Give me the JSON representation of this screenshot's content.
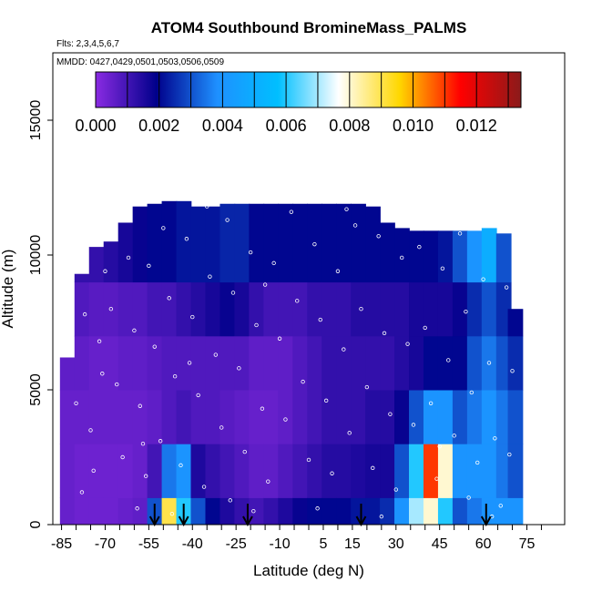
{
  "chart_data": {
    "type": "heatmap",
    "title": "ATOM4 Southbound BromineMass_PALMS",
    "flights_note": "Flts: 2,3,4,5,6,7",
    "dates_note": "MMDD: 0427,0429,0501,0503,0506,0509",
    "xlabel": "Latitude (deg N)",
    "ylabel": "Altitude (m)",
    "xlim": [
      -88,
      88
    ],
    "ylim": [
      0,
      17500
    ],
    "x_ticks": [
      -85,
      -70,
      -55,
      -40,
      -25,
      -10,
      5,
      15,
      30,
      45,
      60,
      75
    ],
    "y_ticks": [
      0,
      5000,
      10000,
      15000
    ],
    "colorbar": {
      "min": 0.0,
      "max": 0.0134,
      "ticks": [
        "0.000",
        "0.002",
        "0.004",
        "0.006",
        "0.008",
        "0.010",
        "0.012"
      ],
      "colors": [
        "#8a2be2",
        "#00008b",
        "#1e90ff",
        "#00bfff",
        "#ffffff",
        "#ffd700",
        "#ff0000",
        "#8b1a1a"
      ]
    },
    "columns": [
      {
        "lat": -83,
        "top": 6200,
        "values": [
          0.0005,
          0.0005,
          0.0005,
          0.0006,
          0.0008,
          0.001
        ]
      },
      {
        "lat": -78,
        "top": 9300,
        "values": [
          0.0004,
          0.0004,
          0.0005,
          0.0006,
          0.0008,
          0.0012
        ]
      },
      {
        "lat": -73,
        "top": 10300,
        "values": [
          0.0004,
          0.0004,
          0.0005,
          0.0005,
          0.0007,
          0.0012
        ]
      },
      {
        "lat": -68,
        "top": 10500,
        "values": [
          0.0004,
          0.0004,
          0.0005,
          0.0005,
          0.0007,
          0.0014
        ]
      },
      {
        "lat": -63,
        "top": 11200,
        "values": [
          0.0005,
          0.0004,
          0.0005,
          0.0006,
          0.0008,
          0.0016
        ]
      },
      {
        "lat": -58,
        "top": 11800,
        "values": [
          0.0006,
          0.0005,
          0.0005,
          0.0006,
          0.0008,
          0.0018
        ]
      },
      {
        "lat": -53,
        "top": 11900,
        "values": [
          0.003,
          0.001,
          0.0006,
          0.0007,
          0.001,
          0.002
        ]
      },
      {
        "lat": -48,
        "top": 12000,
        "values": [
          0.009,
          0.0035,
          0.0008,
          0.0008,
          0.001,
          0.002
        ]
      },
      {
        "lat": -43,
        "top": 12000,
        "values": [
          0.006,
          0.004,
          0.001,
          0.0008,
          0.0012,
          0.0022
        ]
      },
      {
        "lat": -38,
        "top": 11800,
        "values": [
          0.003,
          0.0015,
          0.0008,
          0.0008,
          0.0014,
          0.0022
        ]
      },
      {
        "lat": -33,
        "top": 11800,
        "values": [
          0.002,
          0.0012,
          0.0008,
          0.0008,
          0.0016,
          0.0022
        ]
      },
      {
        "lat": -28,
        "top": 11900,
        "values": [
          0.0015,
          0.001,
          0.0007,
          0.0008,
          0.0018,
          0.0024
        ]
      },
      {
        "lat": -23,
        "top": 11900,
        "values": [
          0.0012,
          0.0008,
          0.0006,
          0.0008,
          0.0016,
          0.0024
        ]
      },
      {
        "lat": -18,
        "top": 11900,
        "values": [
          0.001,
          0.0006,
          0.0005,
          0.0006,
          0.0012,
          0.002
        ]
      },
      {
        "lat": -13,
        "top": 11900,
        "values": [
          0.0012,
          0.0006,
          0.0005,
          0.0006,
          0.001,
          0.002
        ]
      },
      {
        "lat": -8,
        "top": 11900,
        "values": [
          0.0015,
          0.0008,
          0.0006,
          0.0006,
          0.001,
          0.002
        ]
      },
      {
        "lat": -3,
        "top": 11900,
        "values": [
          0.0018,
          0.001,
          0.0008,
          0.0008,
          0.001,
          0.002
        ]
      },
      {
        "lat": 2,
        "top": 11900,
        "values": [
          0.002,
          0.0012,
          0.001,
          0.001,
          0.0012,
          0.002
        ]
      },
      {
        "lat": 7,
        "top": 11900,
        "values": [
          0.002,
          0.0014,
          0.0012,
          0.0012,
          0.0012,
          0.002
        ]
      },
      {
        "lat": 12,
        "top": 11900,
        "values": [
          0.002,
          0.0014,
          0.0012,
          0.0012,
          0.0012,
          0.002
        ]
      },
      {
        "lat": 17,
        "top": 11900,
        "values": [
          0.0022,
          0.0015,
          0.0012,
          0.0012,
          0.0014,
          0.002
        ]
      },
      {
        "lat": 22,
        "top": 11800,
        "values": [
          0.0022,
          0.0016,
          0.0014,
          0.0012,
          0.0014,
          0.002
        ]
      },
      {
        "lat": 27,
        "top": 11200,
        "values": [
          0.0025,
          0.0016,
          0.0014,
          0.0012,
          0.0014,
          0.002
        ]
      },
      {
        "lat": 32,
        "top": 11000,
        "values": [
          0.004,
          0.003,
          0.0018,
          0.0014,
          0.0014,
          0.002
        ]
      },
      {
        "lat": 37,
        "top": 10900,
        "values": [
          0.007,
          0.006,
          0.003,
          0.0016,
          0.0016,
          0.002
        ]
      },
      {
        "lat": 42,
        "top": 10900,
        "values": [
          0.008,
          0.011,
          0.004,
          0.002,
          0.0016,
          0.002
        ]
      },
      {
        "lat": 47,
        "top": 10900,
        "values": [
          0.006,
          0.008,
          0.004,
          0.002,
          0.0016,
          0.0022
        ]
      },
      {
        "lat": 52,
        "top": 10900,
        "values": [
          0.003,
          0.004,
          0.003,
          0.002,
          0.0018,
          0.003
        ]
      },
      {
        "lat": 57,
        "top": 10900,
        "values": [
          0.0035,
          0.004,
          0.0035,
          0.003,
          0.0025,
          0.004
        ]
      },
      {
        "lat": 62,
        "top": 11000,
        "values": [
          0.004,
          0.004,
          0.004,
          0.0035,
          0.003,
          0.005
        ]
      },
      {
        "lat": 67,
        "top": 10800,
        "values": [
          0.004,
          0.0035,
          0.0035,
          0.003,
          0.0025,
          0.003
        ]
      },
      {
        "lat": 71,
        "top": 8000,
        "values": [
          0.004,
          0.003,
          0.003,
          0.0025,
          0.002,
          0.002
        ]
      }
    ],
    "altitude_bands": [
      0,
      1000,
      3000,
      5000,
      7000,
      9000,
      12500
    ],
    "profile_arrows_lat": [
      -53,
      -43,
      -21,
      18,
      61
    ],
    "samples": [
      [
        -78,
        1200
      ],
      [
        -75,
        3500
      ],
      [
        -72,
        6800
      ],
      [
        -70,
        9400
      ],
      [
        -68,
        8000
      ],
      [
        -66,
        5200
      ],
      [
        -64,
        2500
      ],
      [
        -62,
        9900
      ],
      [
        -60,
        7200
      ],
      [
        -58,
        4400
      ],
      [
        -56,
        1800
      ],
      [
        -55,
        9600
      ],
      [
        -53,
        6600
      ],
      [
        -51,
        3100
      ],
      [
        -50,
        11000
      ],
      [
        -48,
        8400
      ],
      [
        -46,
        5500
      ],
      [
        -44,
        2200
      ],
      [
        -42,
        10600
      ],
      [
        -40,
        7700
      ],
      [
        -38,
        4800
      ],
      [
        -36,
        1400
      ],
      [
        -34,
        9200
      ],
      [
        -32,
        6300
      ],
      [
        -30,
        3600
      ],
      [
        -28,
        11300
      ],
      [
        -26,
        8600
      ],
      [
        -24,
        5800
      ],
      [
        -22,
        2700
      ],
      [
        -20,
        10100
      ],
      [
        -18,
        7400
      ],
      [
        -16,
        4300
      ],
      [
        -14,
        1600
      ],
      [
        -12,
        9700
      ],
      [
        -10,
        6900
      ],
      [
        -8,
        3900
      ],
      [
        -6,
        11600
      ],
      [
        -4,
        8300
      ],
      [
        -2,
        5300
      ],
      [
        0,
        2400
      ],
      [
        2,
        10400
      ],
      [
        4,
        7600
      ],
      [
        6,
        4600
      ],
      [
        8,
        1900
      ],
      [
        10,
        9400
      ],
      [
        12,
        6500
      ],
      [
        14,
        3400
      ],
      [
        16,
        11100
      ],
      [
        18,
        8000
      ],
      [
        20,
        5100
      ],
      [
        22,
        2100
      ],
      [
        24,
        10700
      ],
      [
        26,
        7100
      ],
      [
        28,
        4100
      ],
      [
        30,
        1300
      ],
      [
        32,
        9900
      ],
      [
        34,
        6700
      ],
      [
        36,
        3700
      ],
      [
        38,
        10300
      ],
      [
        40,
        7300
      ],
      [
        42,
        4500
      ],
      [
        44,
        1700
      ],
      [
        46,
        9500
      ],
      [
        48,
        6100
      ],
      [
        50,
        3300
      ],
      [
        52,
        10800
      ],
      [
        54,
        7900
      ],
      [
        56,
        4900
      ],
      [
        58,
        2300
      ],
      [
        60,
        9100
      ],
      [
        62,
        6000
      ],
      [
        64,
        3200
      ],
      [
        66,
        700
      ],
      [
        68,
        8800
      ],
      [
        70,
        5700
      ],
      [
        -80,
        4500
      ],
      [
        -77,
        7800
      ],
      [
        -74,
        2000
      ],
      [
        -65,
        11500
      ],
      [
        -59,
        600
      ],
      [
        -47,
        400
      ],
      [
        -35,
        11800
      ],
      [
        -27,
        900
      ],
      [
        -15,
        8900
      ],
      [
        3,
        600
      ],
      [
        13,
        11700
      ],
      [
        25,
        300
      ],
      [
        35,
        11200
      ],
      [
        45,
        2900
      ],
      [
        55,
        1000
      ],
      [
        63,
        300
      ],
      [
        69,
        2600
      ],
      [
        -71,
        5600
      ],
      [
        -57,
        3000
      ],
      [
        -41,
        6000
      ],
      [
        -19,
        500
      ]
    ]
  }
}
